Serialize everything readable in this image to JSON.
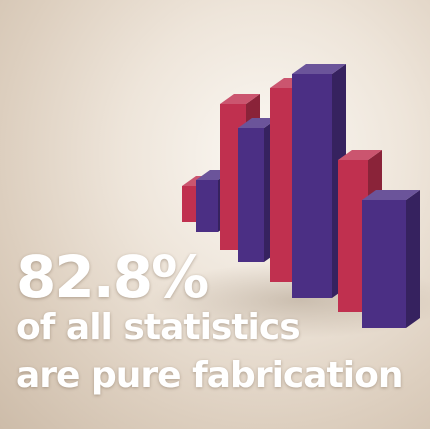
{
  "headline": {
    "big_number": "82.8%",
    "line_1": "of all statistics",
    "line_2": "are pure fabrication"
  },
  "colors": {
    "red": "#c0304f",
    "purple": "#4b2f84"
  }
}
